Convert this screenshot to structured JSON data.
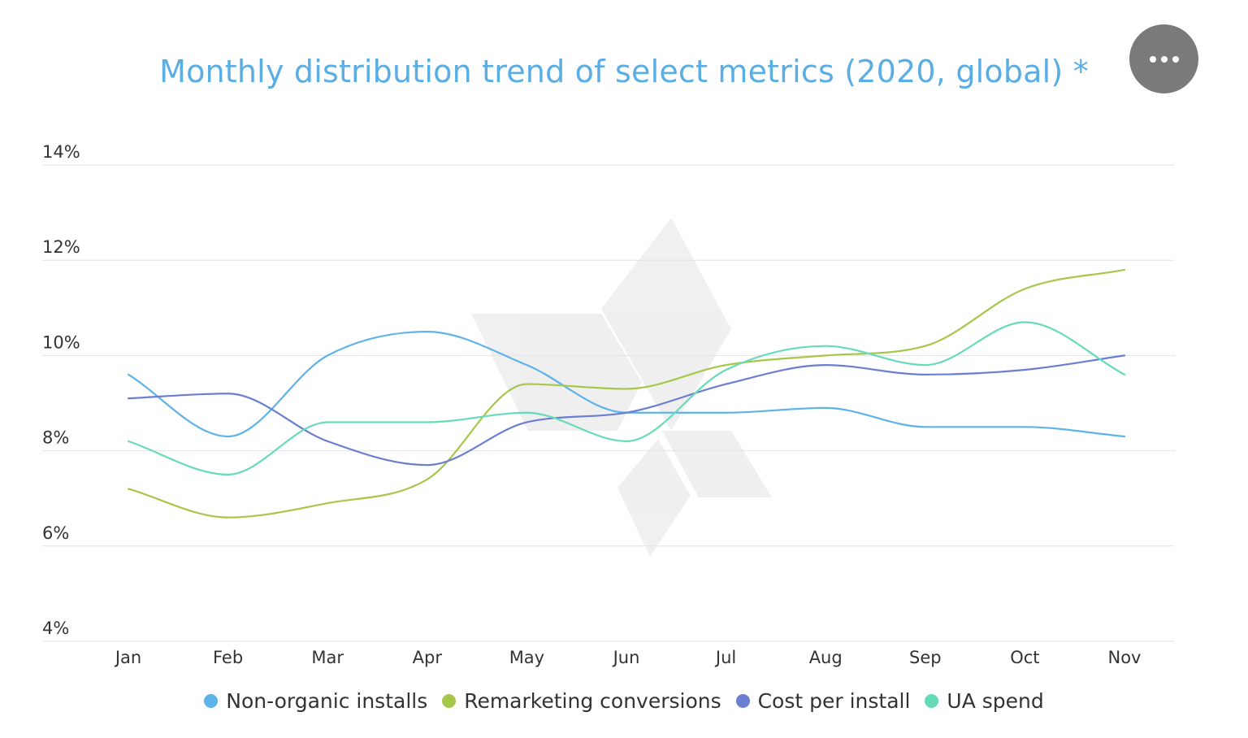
{
  "title": "Monthly distribution trend of select metrics (2020, global) *",
  "colors": {
    "title": "#5aaee3",
    "non_organic": "#5eb3e8",
    "remarketing": "#a6c84a",
    "cpi": "#6b7ed1",
    "ua_spend": "#66dbb9",
    "grid": "#e3e3e3",
    "axis_text": "#333333",
    "menu": "#7a7a7a"
  },
  "menu_icon": "more-horizontal-icon",
  "chart_data": {
    "type": "line",
    "categories": [
      "Jan",
      "Feb",
      "Mar",
      "Apr",
      "May",
      "Jun",
      "Jul",
      "Aug",
      "Sep",
      "Oct",
      "Nov"
    ],
    "y_ticks": [
      "4%",
      "6%",
      "8%",
      "10%",
      "12%",
      "14%"
    ],
    "ylim": [
      4,
      14
    ],
    "grid": true,
    "legend_position": "bottom",
    "title": "Monthly distribution trend of select metrics (2020, global) *",
    "series": [
      {
        "name": "Non-organic installs",
        "color": "#5eb3e8",
        "values": [
          9.6,
          8.3,
          10.0,
          10.5,
          9.8,
          8.8,
          8.8,
          8.9,
          8.5,
          8.5,
          8.3
        ]
      },
      {
        "name": "Remarketing conversions",
        "color": "#a6c84a",
        "values": [
          7.2,
          6.6,
          6.9,
          7.4,
          9.4,
          9.3,
          9.8,
          10.0,
          10.2,
          11.4,
          11.8
        ]
      },
      {
        "name": "Cost per install",
        "color": "#6b7ed1",
        "values": [
          9.1,
          9.2,
          8.2,
          7.7,
          8.6,
          8.8,
          9.4,
          9.8,
          9.6,
          9.7,
          10.0
        ]
      },
      {
        "name": "UA spend",
        "color": "#66dbb9",
        "values": [
          8.2,
          7.5,
          8.6,
          8.6,
          8.8,
          8.2,
          9.7,
          10.2,
          9.8,
          10.7,
          9.6
        ]
      }
    ]
  }
}
